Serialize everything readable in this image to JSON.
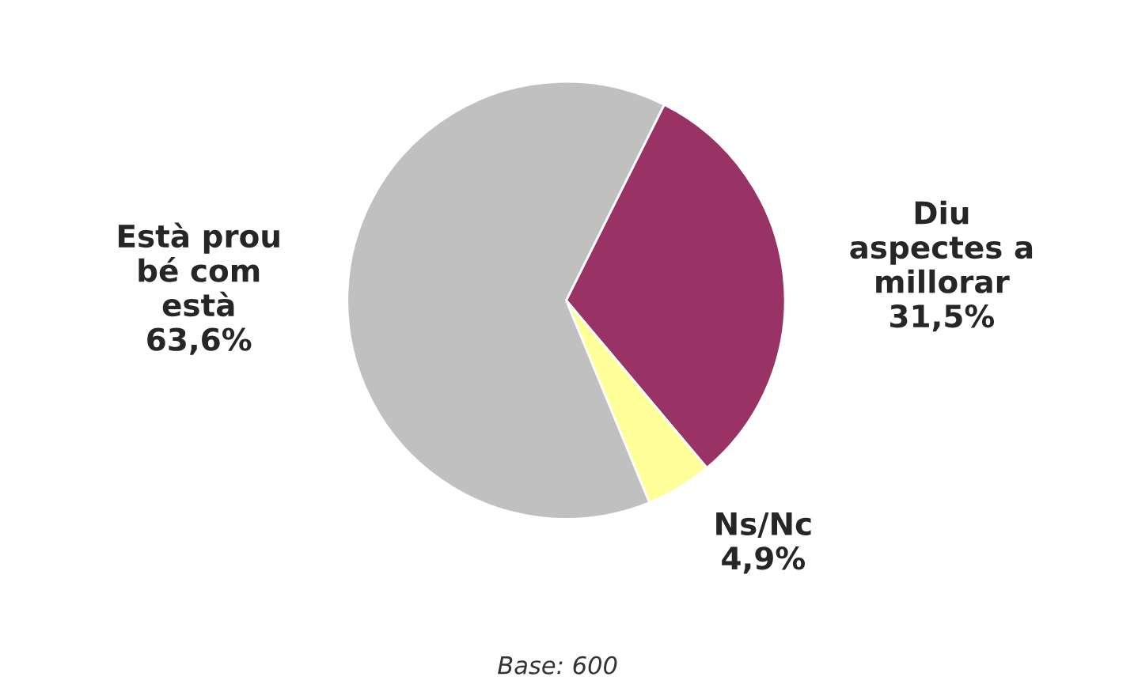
{
  "chart_data": {
    "type": "pie",
    "categories": [
      "Diu\naspectes a\nmillorar",
      "Ns/Nc",
      "Està prou\nbé com\nestà"
    ],
    "values": [
      31.5,
      4.9,
      63.6
    ],
    "value_labels": [
      "31,5%",
      "4,9%",
      "63,6%"
    ],
    "colors": [
      "#993366",
      "#ffff99",
      "#c0c0c0"
    ],
    "annotations": [
      "Base: 600"
    ]
  }
}
